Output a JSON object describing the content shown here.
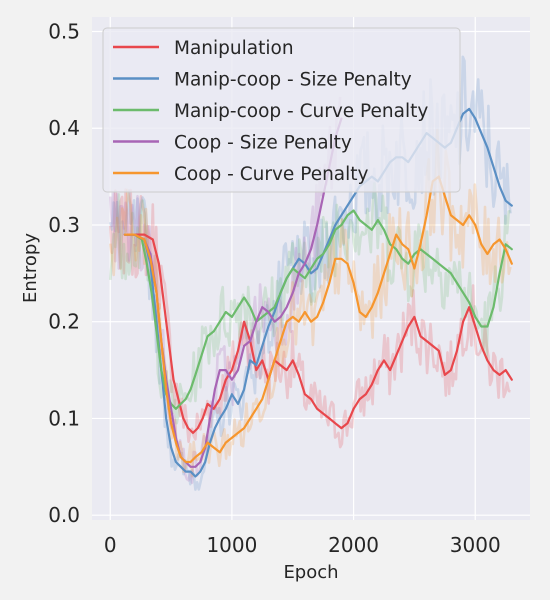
{
  "chart_data": {
    "type": "line",
    "title": "",
    "xlabel": "Epoch",
    "ylabel": "Entropy",
    "xlim": [
      -150,
      3450
    ],
    "ylim": [
      -0.005,
      0.515
    ],
    "xticks": [
      0,
      1000,
      2000,
      3000
    ],
    "xtick_labels": [
      "0",
      "1000",
      "2000",
      "3000"
    ],
    "yticks": [
      0.0,
      0.1,
      0.2,
      0.3,
      0.4,
      0.5
    ],
    "ytick_labels": [
      "0.0",
      "0.1",
      "0.2",
      "0.3",
      "0.4",
      "0.5"
    ],
    "grid": true,
    "legend_position": "upper-left",
    "series": [
      {
        "name": "Manipulation",
        "color": "#e8474c",
        "x": [
          120,
          200,
          280,
          350,
          400,
          440,
          480,
          520,
          560,
          600,
          640,
          680,
          720,
          760,
          800,
          850,
          900,
          950,
          1000,
          1050,
          1100,
          1150,
          1200,
          1250,
          1300,
          1350,
          1400,
          1450,
          1500,
          1550,
          1600,
          1650,
          1700,
          1750,
          1800,
          1850,
          1900,
          1950,
          2000,
          2050,
          2100,
          2150,
          2200,
          2250,
          2300,
          2350,
          2400,
          2450,
          2500,
          2550,
          2600,
          2650,
          2700,
          2750,
          2800,
          2850,
          2900,
          2950,
          3000,
          3050,
          3100,
          3150,
          3200,
          3250,
          3300
        ],
        "values": [
          0.29,
          0.29,
          0.29,
          0.285,
          0.26,
          0.22,
          0.18,
          0.14,
          0.12,
          0.1,
          0.09,
          0.085,
          0.09,
          0.1,
          0.115,
          0.11,
          0.12,
          0.14,
          0.15,
          0.17,
          0.2,
          0.18,
          0.15,
          0.16,
          0.14,
          0.16,
          0.155,
          0.15,
          0.16,
          0.145,
          0.125,
          0.12,
          0.11,
          0.105,
          0.1,
          0.095,
          0.09,
          0.095,
          0.11,
          0.12,
          0.125,
          0.135,
          0.15,
          0.16,
          0.15,
          0.165,
          0.18,
          0.195,
          0.205,
          0.185,
          0.18,
          0.175,
          0.17,
          0.145,
          0.15,
          0.17,
          0.2,
          0.215,
          0.195,
          0.175,
          0.16,
          0.15,
          0.145,
          0.15,
          0.14
        ]
      },
      {
        "name": "Manip-coop - Size Penalty",
        "color": "#5a8fc4",
        "x": [
          120,
          200,
          280,
          330,
          380,
          420,
          460,
          500,
          540,
          580,
          620,
          660,
          700,
          740,
          780,
          820,
          860,
          900,
          950,
          1000,
          1050,
          1100,
          1150,
          1200,
          1250,
          1300,
          1350,
          1400,
          1450,
          1500,
          1550,
          1600,
          1650,
          1700,
          1750,
          1800,
          1850,
          1900,
          1950,
          2000,
          2050,
          2100,
          2150,
          2200,
          2250,
          2300,
          2350,
          2400,
          2450,
          2500,
          2550,
          2600,
          2650,
          2700,
          2750,
          2800,
          2850,
          2900,
          2950,
          3000,
          3050,
          3100,
          3150,
          3200,
          3250,
          3300
        ],
        "values": [
          0.29,
          0.29,
          0.285,
          0.26,
          0.2,
          0.15,
          0.1,
          0.07,
          0.055,
          0.05,
          0.045,
          0.045,
          0.04,
          0.045,
          0.055,
          0.075,
          0.09,
          0.1,
          0.11,
          0.125,
          0.115,
          0.13,
          0.16,
          0.155,
          0.175,
          0.195,
          0.21,
          0.23,
          0.245,
          0.255,
          0.265,
          0.26,
          0.25,
          0.255,
          0.27,
          0.285,
          0.3,
          0.31,
          0.32,
          0.33,
          0.34,
          0.345,
          0.35,
          0.345,
          0.355,
          0.365,
          0.37,
          0.37,
          0.365,
          0.375,
          0.385,
          0.395,
          0.39,
          0.385,
          0.38,
          0.385,
          0.4,
          0.415,
          0.42,
          0.41,
          0.395,
          0.38,
          0.36,
          0.34,
          0.325,
          0.32
        ]
      },
      {
        "name": "Manip-coop - Curve Penalty",
        "color": "#6cbb6c",
        "x": [
          120,
          200,
          260,
          300,
          340,
          380,
          420,
          460,
          500,
          540,
          580,
          620,
          660,
          700,
          750,
          800,
          850,
          900,
          950,
          1000,
          1050,
          1100,
          1150,
          1200,
          1250,
          1300,
          1350,
          1400,
          1450,
          1500,
          1550,
          1600,
          1650,
          1700,
          1750,
          1800,
          1850,
          1900,
          1950,
          2000,
          2050,
          2100,
          2150,
          2200,
          2250,
          2300,
          2350,
          2400,
          2450,
          2500,
          2550,
          2600,
          2650,
          2700,
          2750,
          2800,
          2850,
          2900,
          2950,
          3000,
          3050,
          3100,
          3150,
          3200,
          3250,
          3300
        ],
        "values": [
          0.29,
          0.29,
          0.285,
          0.26,
          0.23,
          0.19,
          0.15,
          0.125,
          0.115,
          0.11,
          0.115,
          0.12,
          0.13,
          0.145,
          0.165,
          0.185,
          0.19,
          0.2,
          0.21,
          0.205,
          0.215,
          0.225,
          0.215,
          0.2,
          0.205,
          0.21,
          0.215,
          0.23,
          0.245,
          0.255,
          0.25,
          0.245,
          0.255,
          0.265,
          0.27,
          0.28,
          0.295,
          0.3,
          0.31,
          0.315,
          0.305,
          0.3,
          0.295,
          0.305,
          0.295,
          0.28,
          0.275,
          0.265,
          0.26,
          0.27,
          0.275,
          0.27,
          0.265,
          0.26,
          0.255,
          0.25,
          0.24,
          0.23,
          0.22,
          0.205,
          0.195,
          0.195,
          0.215,
          0.25,
          0.28,
          0.275
        ]
      },
      {
        "name": "Coop - Size Penalty",
        "color": "#a865b5",
        "x": [
          120,
          200,
          280,
          330,
          380,
          420,
          460,
          500,
          540,
          580,
          620,
          660,
          700,
          740,
          780,
          820,
          860,
          900,
          950,
          1000,
          1050,
          1100,
          1150,
          1200,
          1250,
          1300,
          1350,
          1400,
          1450,
          1500,
          1550,
          1600,
          1650,
          1700,
          1750,
          1800,
          1850,
          1900
        ],
        "values": [
          0.29,
          0.29,
          0.285,
          0.27,
          0.23,
          0.18,
          0.14,
          0.11,
          0.08,
          0.06,
          0.055,
          0.05,
          0.05,
          0.055,
          0.07,
          0.1,
          0.13,
          0.15,
          0.15,
          0.14,
          0.15,
          0.175,
          0.18,
          0.2,
          0.215,
          0.21,
          0.2,
          0.205,
          0.215,
          0.23,
          0.25,
          0.26,
          0.275,
          0.3,
          0.33,
          0.36,
          0.39,
          0.41
        ]
      },
      {
        "name": "Coop - Curve Penalty",
        "color": "#f6962e",
        "x": [
          120,
          200,
          280,
          330,
          380,
          420,
          460,
          500,
          540,
          580,
          620,
          660,
          700,
          750,
          800,
          850,
          900,
          950,
          1000,
          1050,
          1100,
          1150,
          1200,
          1250,
          1300,
          1350,
          1400,
          1450,
          1500,
          1550,
          1600,
          1650,
          1700,
          1750,
          1800,
          1850,
          1900,
          1950,
          2000,
          2050,
          2100,
          2150,
          2200,
          2250,
          2300,
          2350,
          2400,
          2450,
          2500,
          2550,
          2600,
          2650,
          2700,
          2750,
          2800,
          2850,
          2900,
          2950,
          3000,
          3050,
          3100,
          3150,
          3200,
          3250,
          3300
        ],
        "values": [
          0.29,
          0.29,
          0.285,
          0.265,
          0.23,
          0.18,
          0.13,
          0.095,
          0.075,
          0.06,
          0.055,
          0.055,
          0.06,
          0.065,
          0.075,
          0.07,
          0.065,
          0.075,
          0.08,
          0.085,
          0.09,
          0.1,
          0.11,
          0.12,
          0.14,
          0.16,
          0.18,
          0.2,
          0.205,
          0.2,
          0.21,
          0.2,
          0.205,
          0.22,
          0.24,
          0.265,
          0.265,
          0.26,
          0.24,
          0.21,
          0.205,
          0.215,
          0.23,
          0.25,
          0.27,
          0.29,
          0.28,
          0.275,
          0.255,
          0.28,
          0.31,
          0.345,
          0.35,
          0.33,
          0.31,
          0.305,
          0.3,
          0.31,
          0.3,
          0.28,
          0.27,
          0.28,
          0.285,
          0.275,
          0.26
        ]
      }
    ]
  }
}
